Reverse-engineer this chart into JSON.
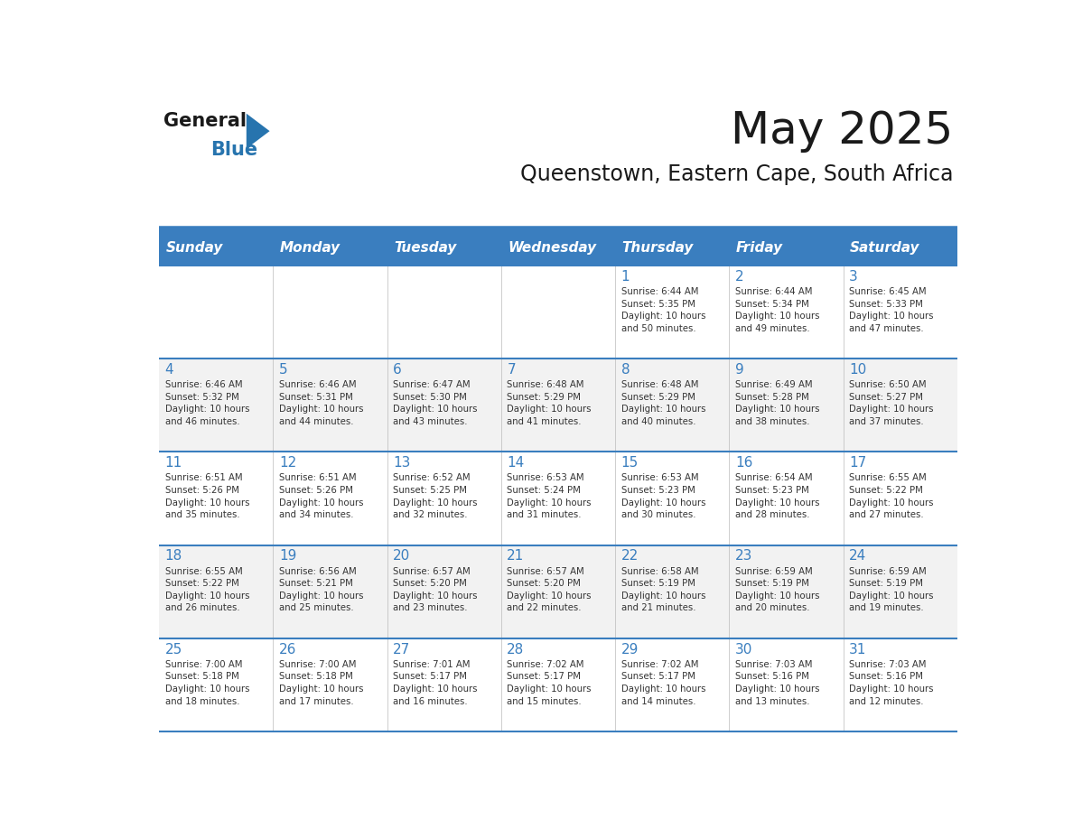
{
  "title": "May 2025",
  "subtitle": "Queenstown, Eastern Cape, South Africa",
  "days_of_week": [
    "Sunday",
    "Monday",
    "Tuesday",
    "Wednesday",
    "Thursday",
    "Friday",
    "Saturday"
  ],
  "header_bg": "#3A7EBF",
  "header_text_color": "#FFFFFF",
  "odd_row_bg": "#F2F2F2",
  "even_row_bg": "#FFFFFF",
  "cell_text_color": "#333333",
  "date_number_color": "#3A7EBF",
  "line_color": "#3A7EBF",
  "bg_color": "#FFFFFF",
  "weeks": [
    {
      "days": [
        {
          "date": "",
          "sunrise": "",
          "sunset": "",
          "daylight": ""
        },
        {
          "date": "",
          "sunrise": "",
          "sunset": "",
          "daylight": ""
        },
        {
          "date": "",
          "sunrise": "",
          "sunset": "",
          "daylight": ""
        },
        {
          "date": "",
          "sunrise": "",
          "sunset": "",
          "daylight": ""
        },
        {
          "date": "1",
          "sunrise": "Sunrise: 6:44 AM",
          "sunset": "Sunset: 5:35 PM",
          "daylight": "Daylight: 10 hours\nand 50 minutes."
        },
        {
          "date": "2",
          "sunrise": "Sunrise: 6:44 AM",
          "sunset": "Sunset: 5:34 PM",
          "daylight": "Daylight: 10 hours\nand 49 minutes."
        },
        {
          "date": "3",
          "sunrise": "Sunrise: 6:45 AM",
          "sunset": "Sunset: 5:33 PM",
          "daylight": "Daylight: 10 hours\nand 47 minutes."
        }
      ]
    },
    {
      "days": [
        {
          "date": "4",
          "sunrise": "Sunrise: 6:46 AM",
          "sunset": "Sunset: 5:32 PM",
          "daylight": "Daylight: 10 hours\nand 46 minutes."
        },
        {
          "date": "5",
          "sunrise": "Sunrise: 6:46 AM",
          "sunset": "Sunset: 5:31 PM",
          "daylight": "Daylight: 10 hours\nand 44 minutes."
        },
        {
          "date": "6",
          "sunrise": "Sunrise: 6:47 AM",
          "sunset": "Sunset: 5:30 PM",
          "daylight": "Daylight: 10 hours\nand 43 minutes."
        },
        {
          "date": "7",
          "sunrise": "Sunrise: 6:48 AM",
          "sunset": "Sunset: 5:29 PM",
          "daylight": "Daylight: 10 hours\nand 41 minutes."
        },
        {
          "date": "8",
          "sunrise": "Sunrise: 6:48 AM",
          "sunset": "Sunset: 5:29 PM",
          "daylight": "Daylight: 10 hours\nand 40 minutes."
        },
        {
          "date": "9",
          "sunrise": "Sunrise: 6:49 AM",
          "sunset": "Sunset: 5:28 PM",
          "daylight": "Daylight: 10 hours\nand 38 minutes."
        },
        {
          "date": "10",
          "sunrise": "Sunrise: 6:50 AM",
          "sunset": "Sunset: 5:27 PM",
          "daylight": "Daylight: 10 hours\nand 37 minutes."
        }
      ]
    },
    {
      "days": [
        {
          "date": "11",
          "sunrise": "Sunrise: 6:51 AM",
          "sunset": "Sunset: 5:26 PM",
          "daylight": "Daylight: 10 hours\nand 35 minutes."
        },
        {
          "date": "12",
          "sunrise": "Sunrise: 6:51 AM",
          "sunset": "Sunset: 5:26 PM",
          "daylight": "Daylight: 10 hours\nand 34 minutes."
        },
        {
          "date": "13",
          "sunrise": "Sunrise: 6:52 AM",
          "sunset": "Sunset: 5:25 PM",
          "daylight": "Daylight: 10 hours\nand 32 minutes."
        },
        {
          "date": "14",
          "sunrise": "Sunrise: 6:53 AM",
          "sunset": "Sunset: 5:24 PM",
          "daylight": "Daylight: 10 hours\nand 31 minutes."
        },
        {
          "date": "15",
          "sunrise": "Sunrise: 6:53 AM",
          "sunset": "Sunset: 5:23 PM",
          "daylight": "Daylight: 10 hours\nand 30 minutes."
        },
        {
          "date": "16",
          "sunrise": "Sunrise: 6:54 AM",
          "sunset": "Sunset: 5:23 PM",
          "daylight": "Daylight: 10 hours\nand 28 minutes."
        },
        {
          "date": "17",
          "sunrise": "Sunrise: 6:55 AM",
          "sunset": "Sunset: 5:22 PM",
          "daylight": "Daylight: 10 hours\nand 27 minutes."
        }
      ]
    },
    {
      "days": [
        {
          "date": "18",
          "sunrise": "Sunrise: 6:55 AM",
          "sunset": "Sunset: 5:22 PM",
          "daylight": "Daylight: 10 hours\nand 26 minutes."
        },
        {
          "date": "19",
          "sunrise": "Sunrise: 6:56 AM",
          "sunset": "Sunset: 5:21 PM",
          "daylight": "Daylight: 10 hours\nand 25 minutes."
        },
        {
          "date": "20",
          "sunrise": "Sunrise: 6:57 AM",
          "sunset": "Sunset: 5:20 PM",
          "daylight": "Daylight: 10 hours\nand 23 minutes."
        },
        {
          "date": "21",
          "sunrise": "Sunrise: 6:57 AM",
          "sunset": "Sunset: 5:20 PM",
          "daylight": "Daylight: 10 hours\nand 22 minutes."
        },
        {
          "date": "22",
          "sunrise": "Sunrise: 6:58 AM",
          "sunset": "Sunset: 5:19 PM",
          "daylight": "Daylight: 10 hours\nand 21 minutes."
        },
        {
          "date": "23",
          "sunrise": "Sunrise: 6:59 AM",
          "sunset": "Sunset: 5:19 PM",
          "daylight": "Daylight: 10 hours\nand 20 minutes."
        },
        {
          "date": "24",
          "sunrise": "Sunrise: 6:59 AM",
          "sunset": "Sunset: 5:19 PM",
          "daylight": "Daylight: 10 hours\nand 19 minutes."
        }
      ]
    },
    {
      "days": [
        {
          "date": "25",
          "sunrise": "Sunrise: 7:00 AM",
          "sunset": "Sunset: 5:18 PM",
          "daylight": "Daylight: 10 hours\nand 18 minutes."
        },
        {
          "date": "26",
          "sunrise": "Sunrise: 7:00 AM",
          "sunset": "Sunset: 5:18 PM",
          "daylight": "Daylight: 10 hours\nand 17 minutes."
        },
        {
          "date": "27",
          "sunrise": "Sunrise: 7:01 AM",
          "sunset": "Sunset: 5:17 PM",
          "daylight": "Daylight: 10 hours\nand 16 minutes."
        },
        {
          "date": "28",
          "sunrise": "Sunrise: 7:02 AM",
          "sunset": "Sunset: 5:17 PM",
          "daylight": "Daylight: 10 hours\nand 15 minutes."
        },
        {
          "date": "29",
          "sunrise": "Sunrise: 7:02 AM",
          "sunset": "Sunset: 5:17 PM",
          "daylight": "Daylight: 10 hours\nand 14 minutes."
        },
        {
          "date": "30",
          "sunrise": "Sunrise: 7:03 AM",
          "sunset": "Sunset: 5:16 PM",
          "daylight": "Daylight: 10 hours\nand 13 minutes."
        },
        {
          "date": "31",
          "sunrise": "Sunrise: 7:03 AM",
          "sunset": "Sunset: 5:16 PM",
          "daylight": "Daylight: 10 hours\nand 12 minutes."
        }
      ]
    }
  ]
}
